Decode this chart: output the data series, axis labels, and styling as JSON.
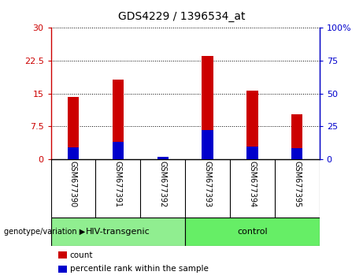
{
  "title": "GDS4229 / 1396534_at",
  "categories": [
    "GSM677390",
    "GSM677391",
    "GSM677392",
    "GSM677393",
    "GSM677394",
    "GSM677395"
  ],
  "red_values": [
    14.2,
    18.2,
    0.0,
    23.5,
    15.7,
    10.2
  ],
  "blue_values_pct": [
    9.0,
    13.0,
    1.5,
    22.0,
    9.5,
    8.5
  ],
  "left_ylim": [
    0,
    30
  ],
  "right_ylim": [
    0,
    100
  ],
  "left_yticks": [
    0,
    7.5,
    15,
    22.5,
    30
  ],
  "right_yticks": [
    0,
    25,
    50,
    75,
    100
  ],
  "left_yticklabels": [
    "0",
    "7.5",
    "15",
    "22.5",
    "30"
  ],
  "right_yticklabels": [
    "0",
    "25",
    "50",
    "75",
    "100%"
  ],
  "red_color": "#cc0000",
  "blue_color": "#0000cc",
  "bar_width": 0.25,
  "groups": [
    {
      "label": "HIV-transgenic",
      "indices": [
        0,
        1,
        2
      ],
      "color": "#90ee90"
    },
    {
      "label": "control",
      "indices": [
        3,
        4,
        5
      ],
      "color": "#66ee66"
    }
  ],
  "legend_items": [
    {
      "color": "#cc0000",
      "label": "count"
    },
    {
      "color": "#0000cc",
      "label": "percentile rank within the sample"
    }
  ],
  "background_color": "#ffffff",
  "plot_bg_color": "#ffffff",
  "category_area_color": "#d3d3d3",
  "title_fontsize": 10,
  "tick_fontsize": 8,
  "label_fontsize": 8
}
